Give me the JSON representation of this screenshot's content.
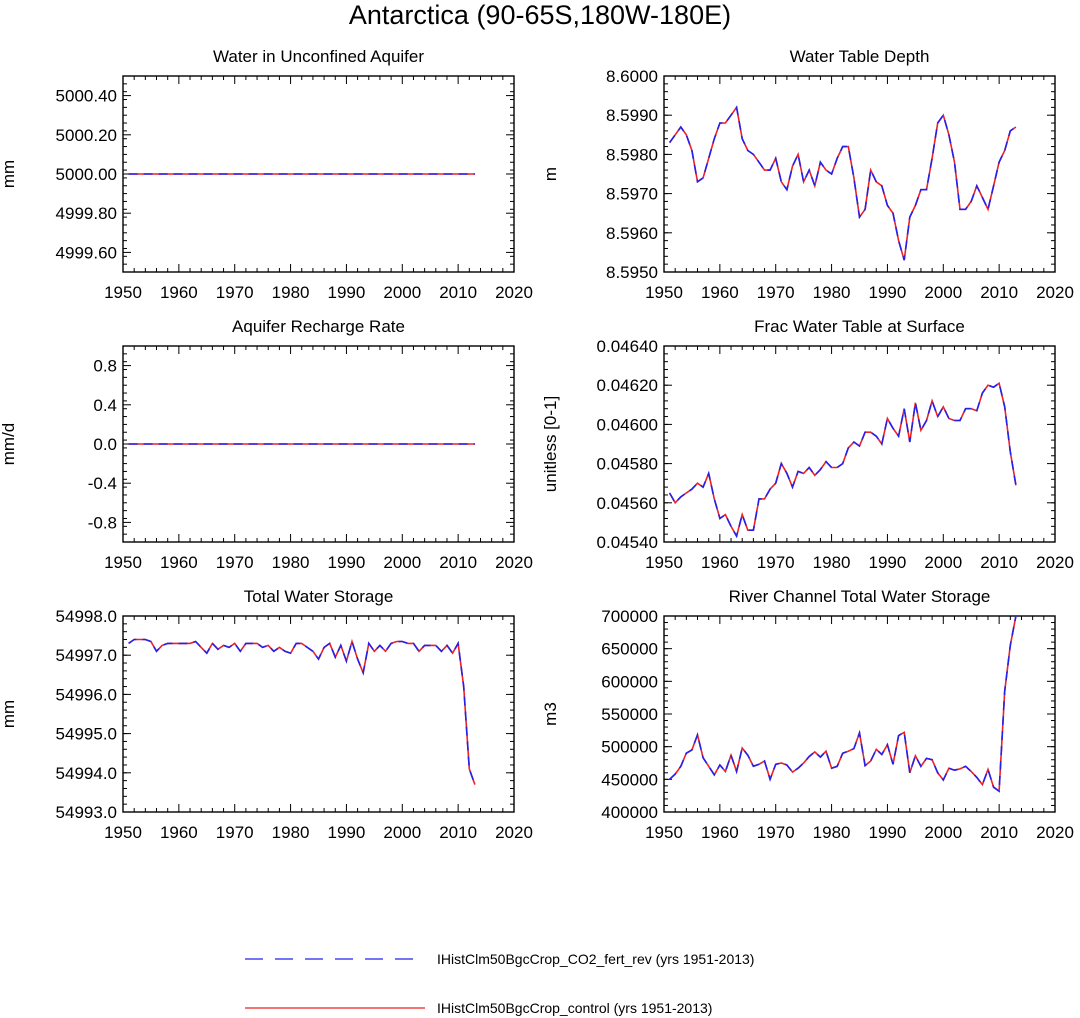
{
  "title": "Antarctica (90-65S,180W-180E)",
  "colors": {
    "co2": "#2222ee",
    "control": "#ee2222",
    "axis": "#000000",
    "background": "#ffffff"
  },
  "legend": [
    {
      "label": "IHistClm50BgcCrop_CO2_fert_rev (yrs 1951-2013)",
      "color": "#2222ee",
      "style": "dashed"
    },
    {
      "label": "IHistClm50BgcCrop_control (yrs 1951-2013)",
      "color": "#ee2222",
      "style": "solid"
    }
  ],
  "chart_data": [
    {
      "type": "line",
      "title": "Water in Unconfined Aquifer",
      "ylabel": "mm",
      "xlim": [
        1950,
        2020
      ],
      "ylim": [
        4999.5,
        5000.5
      ],
      "xticks": [
        1950,
        1960,
        1970,
        1980,
        1990,
        2000,
        2010,
        2020
      ],
      "yticks": [
        4999.6,
        4999.8,
        5000.0,
        5000.2,
        5000.4
      ],
      "ytick_labels": [
        "4999.60",
        "4999.80",
        "5000.00",
        "5000.20",
        "5000.40"
      ],
      "x_start": 1951,
      "values": [
        5000,
        5000,
        5000,
        5000,
        5000,
        5000,
        5000,
        5000,
        5000,
        5000,
        5000,
        5000,
        5000,
        5000,
        5000,
        5000,
        5000,
        5000,
        5000,
        5000,
        5000,
        5000,
        5000,
        5000,
        5000,
        5000,
        5000,
        5000,
        5000,
        5000,
        5000,
        5000,
        5000,
        5000,
        5000,
        5000,
        5000,
        5000,
        5000,
        5000,
        5000,
        5000,
        5000,
        5000,
        5000,
        5000,
        5000,
        5000,
        5000,
        5000,
        5000,
        5000,
        5000,
        5000,
        5000,
        5000,
        5000,
        5000,
        5000,
        5000,
        5000,
        5000,
        5000
      ]
    },
    {
      "type": "line",
      "title": "Water Table Depth",
      "ylabel": "m",
      "xlim": [
        1950,
        2020
      ],
      "ylim": [
        8.595,
        8.6
      ],
      "xticks": [
        1950,
        1960,
        1970,
        1980,
        1990,
        2000,
        2010,
        2020
      ],
      "yticks": [
        8.595,
        8.596,
        8.597,
        8.598,
        8.599,
        8.6
      ],
      "ytick_labels": [
        "8.5950",
        "8.5960",
        "8.5970",
        "8.5980",
        "8.5990",
        "8.6000"
      ],
      "x_start": 1951,
      "values": [
        8.5983,
        8.5985,
        8.5987,
        8.5985,
        8.5981,
        8.5973,
        8.5974,
        8.5979,
        8.5984,
        8.5988,
        8.5988,
        8.599,
        8.5992,
        8.5984,
        8.5981,
        8.598,
        8.5978,
        8.5976,
        8.5976,
        8.5979,
        8.5973,
        8.5971,
        8.5977,
        8.598,
        8.5973,
        8.5976,
        8.5972,
        8.5978,
        8.5976,
        8.5975,
        8.5979,
        8.5982,
        8.5982,
        8.5974,
        8.5964,
        8.5966,
        8.5976,
        8.5973,
        8.5972,
        8.5967,
        8.5965,
        8.5958,
        8.5953,
        8.5964,
        8.5967,
        8.5971,
        8.5971,
        8.5979,
        8.5988,
        8.599,
        8.5985,
        8.5978,
        8.5966,
        8.5966,
        8.5968,
        8.5972,
        8.5969,
        8.5966,
        8.5972,
        8.5978,
        8.5981,
        8.5986,
        8.5987
      ]
    },
    {
      "type": "line",
      "title": "Aquifer Recharge Rate",
      "ylabel": "mm/d",
      "xlim": [
        1950,
        2020
      ],
      "ylim": [
        -1.0,
        1.0
      ],
      "xticks": [
        1950,
        1960,
        1970,
        1980,
        1990,
        2000,
        2010,
        2020
      ],
      "yticks": [
        -0.8,
        -0.4,
        0.0,
        0.4,
        0.8
      ],
      "ytick_labels": [
        "-0.8",
        "-0.4",
        "0.0",
        "0.4",
        "0.8"
      ],
      "x_start": 1951,
      "values": [
        0,
        0,
        0,
        0,
        0,
        0,
        0,
        0,
        0,
        0,
        0,
        0,
        0,
        0,
        0,
        0,
        0,
        0,
        0,
        0,
        0,
        0,
        0,
        0,
        0,
        0,
        0,
        0,
        0,
        0,
        0,
        0,
        0,
        0,
        0,
        0,
        0,
        0,
        0,
        0,
        0,
        0,
        0,
        0,
        0,
        0,
        0,
        0,
        0,
        0,
        0,
        0,
        0,
        0,
        0,
        0,
        0,
        0,
        0,
        0,
        0,
        0,
        0
      ]
    },
    {
      "type": "line",
      "title": "Frac Water Table at Surface",
      "ylabel": "unitless [0-1]",
      "xlim": [
        1950,
        2020
      ],
      "ylim": [
        0.0454,
        0.0464
      ],
      "xticks": [
        1950,
        1960,
        1970,
        1980,
        1990,
        2000,
        2010,
        2020
      ],
      "yticks": [
        0.0454,
        0.0456,
        0.0458,
        0.046,
        0.0462,
        0.0464
      ],
      "ytick_labels": [
        "0.04540",
        "0.04560",
        "0.04580",
        "0.04600",
        "0.04620",
        "0.04640"
      ],
      "x_start": 1951,
      "values": [
        0.04565,
        0.0456,
        0.04563,
        0.04565,
        0.04567,
        0.0457,
        0.04568,
        0.04575,
        0.04562,
        0.04552,
        0.04554,
        0.04548,
        0.04543,
        0.04554,
        0.04546,
        0.04546,
        0.04562,
        0.04562,
        0.04567,
        0.0457,
        0.0458,
        0.04575,
        0.04568,
        0.04576,
        0.04575,
        0.04578,
        0.04574,
        0.04577,
        0.04581,
        0.04578,
        0.04578,
        0.0458,
        0.04588,
        0.04591,
        0.04589,
        0.04596,
        0.04596,
        0.04594,
        0.0459,
        0.04603,
        0.04598,
        0.04594,
        0.04608,
        0.04591,
        0.04611,
        0.04597,
        0.04602,
        0.04612,
        0.04604,
        0.04609,
        0.04603,
        0.04602,
        0.04602,
        0.04608,
        0.04608,
        0.04607,
        0.04616,
        0.0462,
        0.04619,
        0.04621,
        0.04609,
        0.04586,
        0.04569
      ]
    },
    {
      "type": "line",
      "title": "Total Water Storage",
      "ylabel": "mm",
      "xlim": [
        1950,
        2020
      ],
      "ylim": [
        54993.0,
        54998.0
      ],
      "xticks": [
        1950,
        1960,
        1970,
        1980,
        1990,
        2000,
        2010,
        2020
      ],
      "yticks": [
        54993.0,
        54994.0,
        54995.0,
        54996.0,
        54997.0,
        54998.0
      ],
      "ytick_labels": [
        "54993.0",
        "54994.0",
        "54995.0",
        "54996.0",
        "54997.0",
        "54998.0"
      ],
      "x_start": 1951,
      "values": [
        54997.3,
        54997.4,
        54997.4,
        54997.4,
        54997.35,
        54997.1,
        54997.25,
        54997.3,
        54997.3,
        54997.3,
        54997.3,
        54997.3,
        54997.35,
        54997.2,
        54997.05,
        54997.3,
        54997.15,
        54997.25,
        54997.2,
        54997.3,
        54997.1,
        54997.3,
        54997.3,
        54997.3,
        54997.2,
        54997.25,
        54997.1,
        54997.2,
        54997.1,
        54997.05,
        54997.3,
        54997.3,
        54997.2,
        54997.1,
        54996.9,
        54997.2,
        54997.3,
        54996.95,
        54997.25,
        54996.85,
        54997.35,
        54996.9,
        54996.55,
        54997.3,
        54997.1,
        54997.25,
        54997.1,
        54997.3,
        54997.35,
        54997.35,
        54997.3,
        54997.3,
        54997.1,
        54997.25,
        54997.25,
        54997.25,
        54997.1,
        54997.25,
        54997.05,
        54997.3,
        54996.2,
        54994.1,
        54993.7
      ]
    },
    {
      "type": "line",
      "title": "River Channel Total Water Storage",
      "ylabel": "m3",
      "xlim": [
        1950,
        2020
      ],
      "ylim": [
        400000,
        700000
      ],
      "xticks": [
        1950,
        1960,
        1970,
        1980,
        1990,
        2000,
        2010,
        2020
      ],
      "yticks": [
        400000,
        450000,
        500000,
        550000,
        600000,
        650000,
        700000
      ],
      "ytick_labels": [
        "400000",
        "450000",
        "500000",
        "550000",
        "600000",
        "650000",
        "700000"
      ],
      "x_start": 1951,
      "values": [
        450000,
        458000,
        470000,
        490000,
        495000,
        518000,
        483000,
        470000,
        457000,
        472000,
        462000,
        487000,
        462000,
        498000,
        487000,
        470000,
        473000,
        478000,
        450000,
        473000,
        475000,
        472000,
        461000,
        467000,
        475000,
        485000,
        492000,
        484000,
        493000,
        467000,
        470000,
        490000,
        493000,
        497000,
        521000,
        471000,
        478000,
        496000,
        488000,
        503000,
        473000,
        517000,
        522000,
        460000,
        486000,
        470000,
        482000,
        480000,
        460000,
        449000,
        467000,
        464000,
        466000,
        470000,
        462000,
        453000,
        442000,
        465000,
        438000,
        432000,
        585000,
        655000,
        700000
      ]
    }
  ]
}
